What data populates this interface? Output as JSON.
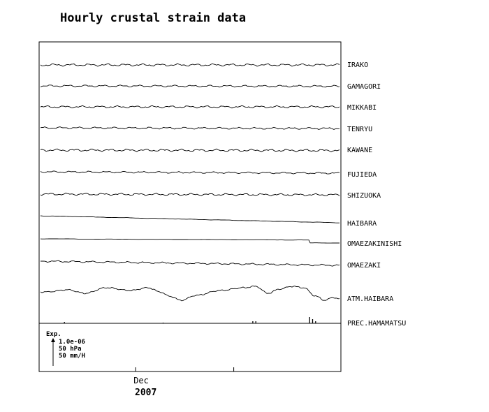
{
  "chart_data": {
    "type": "line",
    "title": "Hourly crustal strain data",
    "stations": [
      {
        "name": "IRAKO",
        "kind": "wave",
        "offset": 0,
        "drift": 0.0,
        "amp": 1.2
      },
      {
        "name": "GAMAGORI",
        "kind": "wave",
        "offset": 0,
        "drift": 0.5,
        "amp": 1.0
      },
      {
        "name": "MIKKABI",
        "kind": "wave",
        "offset": 0,
        "drift": 0.0,
        "amp": 1.1
      },
      {
        "name": "TENRYU",
        "kind": "wave",
        "offset": 0,
        "drift": 1.0,
        "amp": 1.0
      },
      {
        "name": "KAWANE",
        "kind": "wave",
        "offset": 0,
        "drift": 0.5,
        "amp": 1.2
      },
      {
        "name": "FUJIEDA",
        "kind": "wave",
        "offset": 0,
        "drift": 2.0,
        "amp": 0.9
      },
      {
        "name": "SHIZUOKA",
        "kind": "wave",
        "offset": 0,
        "drift": 1.0,
        "amp": 1.1
      },
      {
        "name": "HAIBARA",
        "kind": "drift",
        "offset": 0,
        "drift": 10.0,
        "amp": 0.3
      },
      {
        "name": "OMAEZAKINISHI",
        "kind": "step",
        "offset": 0,
        "drift": 4.0,
        "amp": 0.2
      },
      {
        "name": "OMAEZAKI",
        "kind": "wave",
        "offset": 0,
        "drift": 6.0,
        "amp": 0.9
      },
      {
        "name": "ATM.HAIBARA",
        "kind": "pressure",
        "offset": 0,
        "drift": 0.0,
        "amp": 1.0
      },
      {
        "name": "PREC.HAMAMATSU",
        "kind": "precip",
        "offset": 0,
        "drift": 0.0,
        "amp": 1.0
      }
    ],
    "x_ticks": [
      {
        "label": "Dec",
        "at": 0.32
      }
    ],
    "x_year": "2007",
    "scale": {
      "heading": "Exp.",
      "items": [
        "1.0e-06",
        "50 hPa",
        "50 mm/H"
      ]
    },
    "grid": false
  }
}
